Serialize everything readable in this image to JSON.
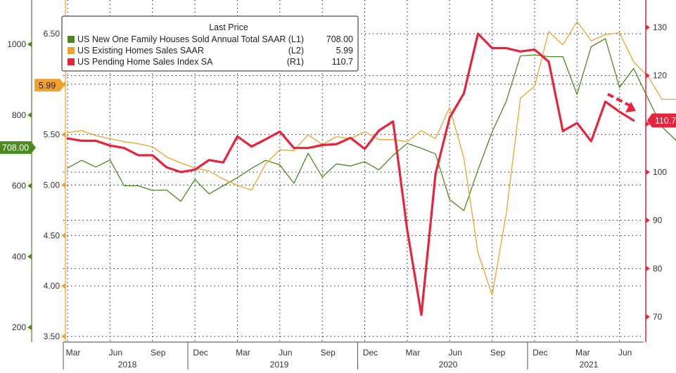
{
  "chart_data": {
    "type": "line",
    "legend": {
      "title": "Last Price",
      "placement": "top-left",
      "entries": [
        {
          "label": "US New One Family Houses Sold Annual Total SAAR",
          "axis_tag": "(L1)",
          "value_text": "708.00",
          "color": "#4a8a1e"
        },
        {
          "label": "US Existing Homes Sales SAAR",
          "axis_tag": "(L2)",
          "value_text": "5.99",
          "color": "#f2a12e"
        },
        {
          "label": "US Pending Home Sales Index SA",
          "axis_tag": "(R1)",
          "value_text": "110.7",
          "color": "#e8243c"
        }
      ]
    },
    "grid": true,
    "x_axis": {
      "month_ticks": [
        "Mar",
        "Jun",
        "Sep",
        "Dec",
        "Mar",
        "Jun",
        "Sep",
        "Dec",
        "Mar",
        "Jun",
        "Sep",
        "Dec",
        "Mar",
        "Jun"
      ],
      "year_labels": [
        "2018",
        "2019",
        "2020",
        "2021"
      ]
    },
    "axes": {
      "L1": {
        "ticks": [
          "1000",
          "800",
          "600",
          "400",
          "200"
        ],
        "tick_values": [
          1000,
          800,
          600,
          400,
          200
        ],
        "range": [
          117,
          1107
        ],
        "last_value_label": "708.00",
        "color": "#4a8a1e"
      },
      "L2": {
        "ticks": [
          "6.50",
          "6.00",
          "5.50",
          "5.00",
          "4.50",
          "4.00",
          "3.50"
        ],
        "tick_values": [
          6.5,
          6.0,
          5.5,
          5.0,
          4.5,
          4.0,
          3.5
        ],
        "range": [
          3.46,
          6.76
        ],
        "last_value_label": "5.99",
        "color": "#f2a12e"
      },
      "R1": {
        "ticks": [
          "130",
          "120",
          "110",
          "100",
          "90",
          "80",
          "70"
        ],
        "tick_values": [
          130,
          120,
          110,
          100,
          90,
          80,
          70
        ],
        "range": [
          64.5,
          135.5
        ],
        "last_value_label": "110.7",
        "color": "#e8243c"
      }
    },
    "series": [
      {
        "name": "US New One Family Houses Sold Annual Total SAAR",
        "axis": "L1",
        "values": [
          650,
          672,
          653,
          673,
          600,
          600,
          587,
          588,
          556,
          618,
          577,
          600,
          623,
          649,
          672,
          659,
          607,
          692,
          625,
          662,
          656,
          668,
          645,
          686,
          720,
          706,
          690,
          561,
          530,
          645,
          752,
          839,
          967,
          970,
          965,
          965,
          858,
          993,
          1016,
          878,
          932,
          848,
          767,
          728,
          708
        ]
      },
      {
        "name": "US Existing Homes Sales SAAR",
        "axis": "L2",
        "values": [
          5.52,
          5.54,
          5.49,
          5.46,
          5.43,
          5.41,
          5.38,
          5.28,
          5.22,
          5.17,
          5.14,
          5.06,
          5.0,
          4.95,
          5.21,
          5.35,
          5.34,
          5.5,
          5.4,
          5.48,
          5.46,
          5.53,
          5.45,
          5.45,
          5.43,
          5.54,
          5.46,
          5.77,
          5.27,
          4.33,
          3.91,
          4.72,
          5.86,
          5.98,
          6.52,
          6.39,
          6.62,
          6.43,
          6.49,
          6.51,
          6.22,
          6.08,
          5.85,
          5.85,
          5.8,
          5.99
        ]
      },
      {
        "name": "US Pending Home Sales Index SA",
        "axis": "R1",
        "values": [
          107,
          106.5,
          106.5,
          105.5,
          105,
          103.5,
          103.5,
          101,
          100,
          100.5,
          102.5,
          102,
          107.4,
          105.3,
          106.8,
          108.4,
          105,
          105,
          105.6,
          105.8,
          107.1,
          104.8,
          108.6,
          110.5,
          88,
          70.4,
          99.6,
          111.3,
          116.3,
          128.7,
          125.7,
          125.7,
          125,
          125.4,
          122.9,
          108.5,
          110.2,
          106.4,
          114.6,
          112.5,
          110.7
        ]
      }
    ],
    "annotations": [
      {
        "type": "dashed-arrow",
        "color": "#e8243c",
        "description": "downward arrow pointing at the latest pending home sales reading"
      }
    ]
  }
}
